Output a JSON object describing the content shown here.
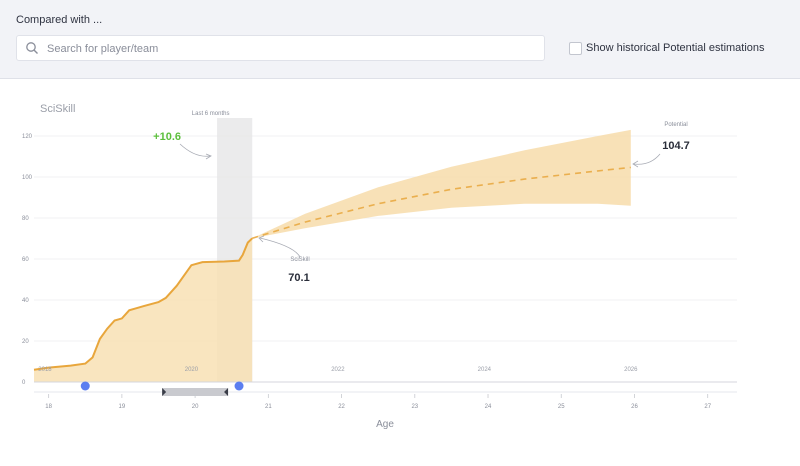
{
  "compare": {
    "title": "Compared with ...",
    "search_placeholder": "Search for player/team",
    "search_icon": "search-icon",
    "historical_label": "Show historical Potential estimations",
    "historical_checked": false
  },
  "chart_data": {
    "type": "line",
    "title": "SciSkill",
    "xlabel": "Age",
    "ylabel": "",
    "xlim": [
      17.8,
      27.4
    ],
    "ylim": [
      0,
      120
    ],
    "y_ticks": [
      "0",
      "20",
      "40",
      "60",
      "80",
      "100",
      "120"
    ],
    "x_ticks": [
      "18",
      "19",
      "20",
      "21",
      "22",
      "23",
      "24",
      "25",
      "26",
      "27"
    ],
    "year_ticks": [
      {
        "label": "2018",
        "age": 17.95
      },
      {
        "label": "2020",
        "age": 19.95
      },
      {
        "label": "2022",
        "age": 21.95
      },
      {
        "label": "2024",
        "age": 23.95
      },
      {
        "label": "2026",
        "age": 25.95
      }
    ],
    "grid": true,
    "series": [
      {
        "type": "history",
        "x": [
          17.8,
          18.0,
          18.3,
          18.5,
          18.6,
          18.7,
          18.8,
          18.9,
          19.0,
          19.1,
          19.2,
          19.3,
          19.5,
          19.6,
          19.75,
          19.85,
          19.95,
          20.1,
          20.4,
          20.6,
          20.65,
          20.72,
          20.78
        ],
        "y": [
          6,
          7,
          8,
          9,
          12,
          21,
          26,
          30,
          31,
          35,
          36,
          37,
          39,
          41,
          47,
          52,
          57,
          58.5,
          58.8,
          59.2,
          62,
          68,
          70.1
        ]
      },
      {
        "type": "projection",
        "x": [
          20.78,
          21.5,
          22.5,
          23.5,
          24.5,
          25.5,
          25.95
        ],
        "y": [
          70.1,
          78,
          87,
          94,
          99,
          103,
          104.7
        ],
        "upper": [
          70.1,
          82,
          95,
          105,
          113,
          120,
          123
        ],
        "lower": [
          70.1,
          75,
          81,
          85,
          87,
          87,
          86
        ]
      }
    ],
    "highlight": {
      "label": "Last 6 months",
      "x_start": 20.3,
      "x_end": 20.78
    },
    "annotations": [
      {
        "text": "+10.6",
        "color": "#5cbf3c"
      },
      {
        "label": "SciSkill",
        "value": "70.1"
      },
      {
        "label": "Potential",
        "value": "104.7"
      }
    ],
    "range_slider": {
      "start_age": 18.5,
      "end_age": 20.6,
      "window_start": 19.55,
      "window_end": 20.45
    },
    "colors": {
      "line": "#e8a63c",
      "fill": "#f8e1b4",
      "band": "#f7dcaa",
      "highlight": "#e4e4e6",
      "handle": "#5b7ef0"
    }
  }
}
